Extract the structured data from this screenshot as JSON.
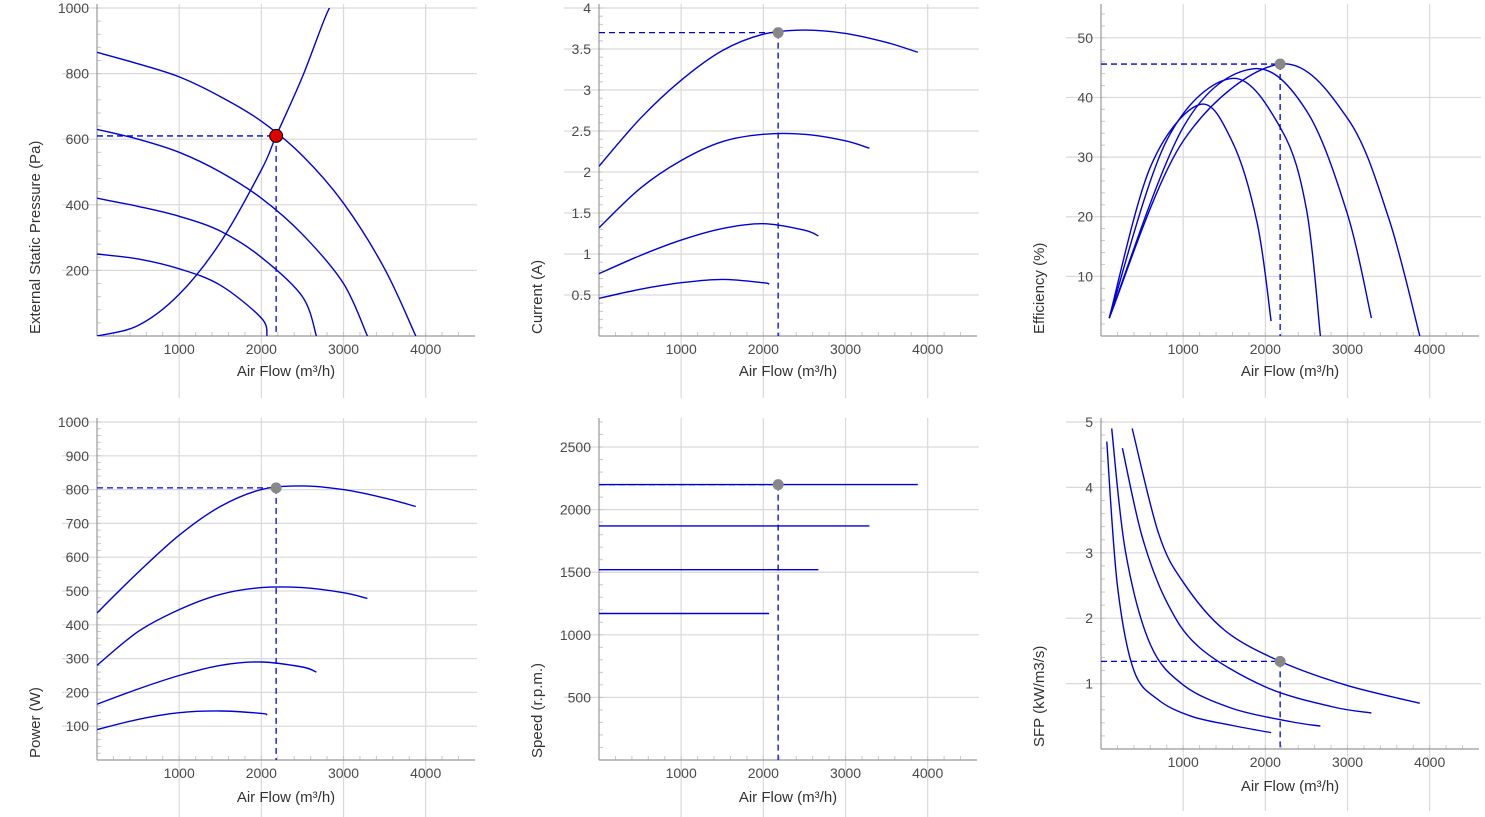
{
  "chart_data": [
    {
      "type": "line",
      "xlabel": "Air Flow (m³/h)",
      "ylabel": "External Static Pressure (Pa)",
      "xlim": [
        0,
        4600
      ],
      "ylim": [
        0,
        1000
      ],
      "xticks": [
        1000,
        2000,
        3000,
        4000
      ],
      "yticks": [
        200,
        400,
        600,
        800,
        1000
      ],
      "grid": true,
      "series": [
        {
          "x": [
            0,
            500,
            1000,
            1500,
            2000,
            2500,
            3000,
            3500,
            3880
          ],
          "y": [
            865,
            830,
            790,
            730,
            655,
            550,
            405,
            205,
            0
          ]
        },
        {
          "x": [
            0,
            500,
            1000,
            1500,
            2000,
            2500,
            3000,
            3290
          ],
          "y": [
            630,
            600,
            560,
            500,
            420,
            310,
            160,
            0
          ]
        },
        {
          "x": [
            0,
            500,
            1000,
            1500,
            2000,
            2500,
            2670
          ],
          "y": [
            420,
            395,
            365,
            320,
            240,
            120,
            0
          ]
        },
        {
          "x": [
            0,
            500,
            1000,
            1500,
            2000,
            2070
          ],
          "y": [
            250,
            235,
            205,
            155,
            55,
            0
          ]
        },
        {
          "x": [
            0,
            500,
            1000,
            1500,
            2000,
            2180,
            2500,
            2800,
            2960
          ],
          "y": [
            0,
            32,
            127,
            285,
            506,
            610,
            790,
            985,
            1050
          ]
        }
      ],
      "operating_point": {
        "x": 2180,
        "y": 610,
        "color": "#e00000"
      }
    },
    {
      "type": "line",
      "xlabel": "Air Flow (m³/h)",
      "ylabel": "Current (A)",
      "xlim": [
        0,
        4600
      ],
      "ylim": [
        0,
        4
      ],
      "xticks": [
        1000,
        2000,
        3000,
        4000
      ],
      "yticks": [
        0.5,
        1,
        1.5,
        2,
        2.5,
        3,
        3.5,
        4
      ],
      "grid": true,
      "series": [
        {
          "x": [
            0,
            500,
            1000,
            1500,
            2000,
            2500,
            3000,
            3500,
            3880
          ],
          "y": [
            2.07,
            2.65,
            3.12,
            3.48,
            3.68,
            3.73,
            3.69,
            3.58,
            3.46
          ]
        },
        {
          "x": [
            0,
            500,
            1000,
            1500,
            2000,
            2500,
            3000,
            3290
          ],
          "y": [
            1.32,
            1.8,
            2.14,
            2.37,
            2.46,
            2.46,
            2.38,
            2.29
          ]
        },
        {
          "x": [
            0,
            500,
            1000,
            1500,
            2000,
            2500,
            2670
          ],
          "y": [
            0.76,
            0.98,
            1.17,
            1.31,
            1.37,
            1.29,
            1.22
          ]
        },
        {
          "x": [
            0,
            500,
            1000,
            1500,
            2000,
            2070
          ],
          "y": [
            0.46,
            0.57,
            0.65,
            0.69,
            0.65,
            0.63
          ]
        }
      ],
      "operating_point": {
        "x": 2180,
        "y": 3.7,
        "color": "#888888"
      }
    },
    {
      "type": "line",
      "xlabel": "Air Flow (m³/h)",
      "ylabel": "Efficiency (%)",
      "xlim": [
        0,
        4600
      ],
      "ylim": [
        0,
        55
      ],
      "xticks": [
        1000,
        2000,
        3000,
        4000
      ],
      "yticks": [
        10,
        20,
        30,
        40,
        50
      ],
      "grid": true,
      "series": [
        {
          "x": [
            100,
            1000,
            2180,
            3000,
            3500,
            3880
          ],
          "y": [
            3,
            32.7,
            45.6,
            36.5,
            19.8,
            0
          ]
        },
        {
          "x": [
            100,
            1000,
            1850,
            2500,
            3000,
            3290
          ],
          "y": [
            3,
            35,
            44.8,
            37.8,
            20.4,
            3
          ]
        },
        {
          "x": [
            100,
            800,
            1600,
            2200,
            2500,
            2670
          ],
          "y": [
            3,
            32.8,
            43.2,
            34.5,
            21.3,
            0
          ]
        },
        {
          "x": [
            100,
            600,
            1200,
            1600,
            1900,
            2070
          ],
          "y": [
            3,
            28.3,
            38.8,
            32.5,
            19,
            2.5
          ]
        }
      ],
      "operating_point": {
        "x": 2180,
        "y": 45.6,
        "color": "#888888"
      }
    },
    {
      "type": "line",
      "xlabel": "Air Flow (m³/h)",
      "ylabel": "Power (W)",
      "xlim": [
        0,
        4600
      ],
      "ylim": [
        0,
        1000
      ],
      "xticks": [
        1000,
        2000,
        3000,
        4000
      ],
      "yticks": [
        100,
        200,
        300,
        400,
        500,
        600,
        700,
        800,
        900,
        1000
      ],
      "grid": true,
      "series": [
        {
          "x": [
            0,
            500,
            1000,
            1500,
            2000,
            2500,
            3000,
            3500,
            3880
          ],
          "y": [
            435,
            555,
            665,
            750,
            800,
            811,
            800,
            775,
            750
          ]
        },
        {
          "x": [
            0,
            500,
            1000,
            1500,
            2000,
            2500,
            3000,
            3290
          ],
          "y": [
            280,
            380,
            445,
            490,
            510,
            510,
            495,
            478
          ]
        },
        {
          "x": [
            0,
            500,
            1000,
            1500,
            2000,
            2500,
            2670
          ],
          "y": [
            165,
            210,
            250,
            280,
            290,
            275,
            260
          ]
        },
        {
          "x": [
            0,
            500,
            1000,
            1500,
            2000,
            2070
          ],
          "y": [
            90,
            120,
            140,
            145,
            138,
            133
          ]
        }
      ],
      "operating_point": {
        "x": 2180,
        "y": 805,
        "color": "#888888"
      }
    },
    {
      "type": "line",
      "xlabel": "Air Flow (m³/h)",
      "ylabel": "Speed (r.p.m.)",
      "xlim": [
        0,
        4600
      ],
      "ylim": [
        0,
        2700
      ],
      "xticks": [
        1000,
        2000,
        3000,
        4000
      ],
      "yticks": [
        500,
        1000,
        1500,
        2000,
        2500
      ],
      "grid": true,
      "series": [
        {
          "x": [
            0,
            3880
          ],
          "y": [
            2200,
            2200
          ]
        },
        {
          "x": [
            0,
            3290
          ],
          "y": [
            1870,
            1870
          ]
        },
        {
          "x": [
            0,
            2670
          ],
          "y": [
            1520,
            1520
          ]
        },
        {
          "x": [
            0,
            2070
          ],
          "y": [
            1170,
            1170
          ]
        }
      ],
      "operating_point": {
        "x": 2180,
        "y": 2200,
        "color": "#888888"
      }
    },
    {
      "type": "line",
      "xlabel": "Air Flow (m³/h)",
      "ylabel": "SFP (kW/m3/s)",
      "xlim": [
        0,
        4600
      ],
      "ylim": [
        0,
        5
      ],
      "xticks": [
        1000,
        2000,
        3000,
        4000
      ],
      "yticks": [
        1,
        2,
        3,
        4,
        5
      ],
      "grid": true,
      "series": [
        {
          "x": [
            380,
            700,
            1000,
            1500,
            2180,
            3000,
            3880
          ],
          "y": [
            4.9,
            3.3,
            2.55,
            1.82,
            1.34,
            0.97,
            0.7
          ]
        },
        {
          "x": [
            260,
            500,
            800,
            1200,
            2000,
            2800,
            3290
          ],
          "y": [
            4.6,
            3.25,
            2.25,
            1.55,
            0.95,
            0.65,
            0.55
          ]
        },
        {
          "x": [
            130,
            300,
            600,
            1000,
            1600,
            2300,
            2670
          ],
          "y": [
            4.9,
            3.0,
            1.6,
            0.98,
            0.62,
            0.42,
            0.35
          ]
        },
        {
          "x": [
            70,
            200,
            400,
            700,
            1100,
            1600,
            2070
          ],
          "y": [
            4.7,
            2.5,
            1.2,
            0.75,
            0.5,
            0.36,
            0.25
          ]
        }
      ],
      "operating_point": {
        "x": 2180,
        "y": 1.34,
        "color": "#888888"
      }
    }
  ]
}
